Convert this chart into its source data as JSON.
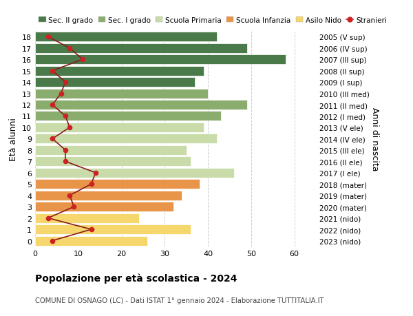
{
  "ages": [
    0,
    1,
    2,
    3,
    4,
    5,
    6,
    7,
    8,
    9,
    10,
    11,
    12,
    13,
    14,
    15,
    16,
    17,
    18
  ],
  "bar_values": [
    26,
    36,
    24,
    32,
    34,
    38,
    46,
    36,
    35,
    42,
    39,
    43,
    49,
    40,
    37,
    39,
    58,
    49,
    42
  ],
  "bar_colors": [
    "#f5d76e",
    "#f5d76e",
    "#f5d76e",
    "#e8954a",
    "#e8954a",
    "#e8954a",
    "#c8dba8",
    "#c8dba8",
    "#c8dba8",
    "#c8dba8",
    "#c8dba8",
    "#8aad6e",
    "#8aad6e",
    "#8aad6e",
    "#4a7a4a",
    "#4a7a4a",
    "#4a7a4a",
    "#4a7a4a",
    "#4a7a4a"
  ],
  "stranieri_values": [
    4,
    13,
    3,
    9,
    8,
    13,
    14,
    7,
    7,
    4,
    8,
    7,
    4,
    6,
    7,
    4,
    11,
    8,
    3
  ],
  "right_labels": [
    "2023 (nido)",
    "2022 (nido)",
    "2021 (nido)",
    "2020 (mater)",
    "2019 (mater)",
    "2018 (mater)",
    "2017 (I ele)",
    "2016 (II ele)",
    "2015 (III ele)",
    "2014 (IV ele)",
    "2013 (V ele)",
    "2012 (I med)",
    "2011 (II med)",
    "2010 (III med)",
    "2009 (I sup)",
    "2008 (II sup)",
    "2007 (III sup)",
    "2006 (IV sup)",
    "2005 (V sup)"
  ],
  "legend_labels": [
    "Sec. II grado",
    "Sec. I grado",
    "Scuola Primaria",
    "Scuola Infanzia",
    "Asilo Nido",
    "Stranieri"
  ],
  "legend_colors": [
    "#4a7a4a",
    "#8aad6e",
    "#c8dba8",
    "#e8954a",
    "#f5d76e",
    "#cc2222"
  ],
  "ylabel_left": "Età alunni",
  "ylabel_right": "Anni di nascita",
  "title": "Popolazione per età scolastica - 2024",
  "subtitle": "COMUNE DI OSNAGO (LC) - Dati ISTAT 1° gennaio 2024 - Elaborazione TUTTITALIA.IT",
  "xlim": [
    0,
    65
  ],
  "xticks": [
    0,
    10,
    20,
    30,
    40,
    50,
    60
  ],
  "background_color": "#ffffff",
  "grid_color": "#cccccc",
  "stranieri_color": "#cc2222",
  "stranieri_line_color": "#8b1a1a"
}
